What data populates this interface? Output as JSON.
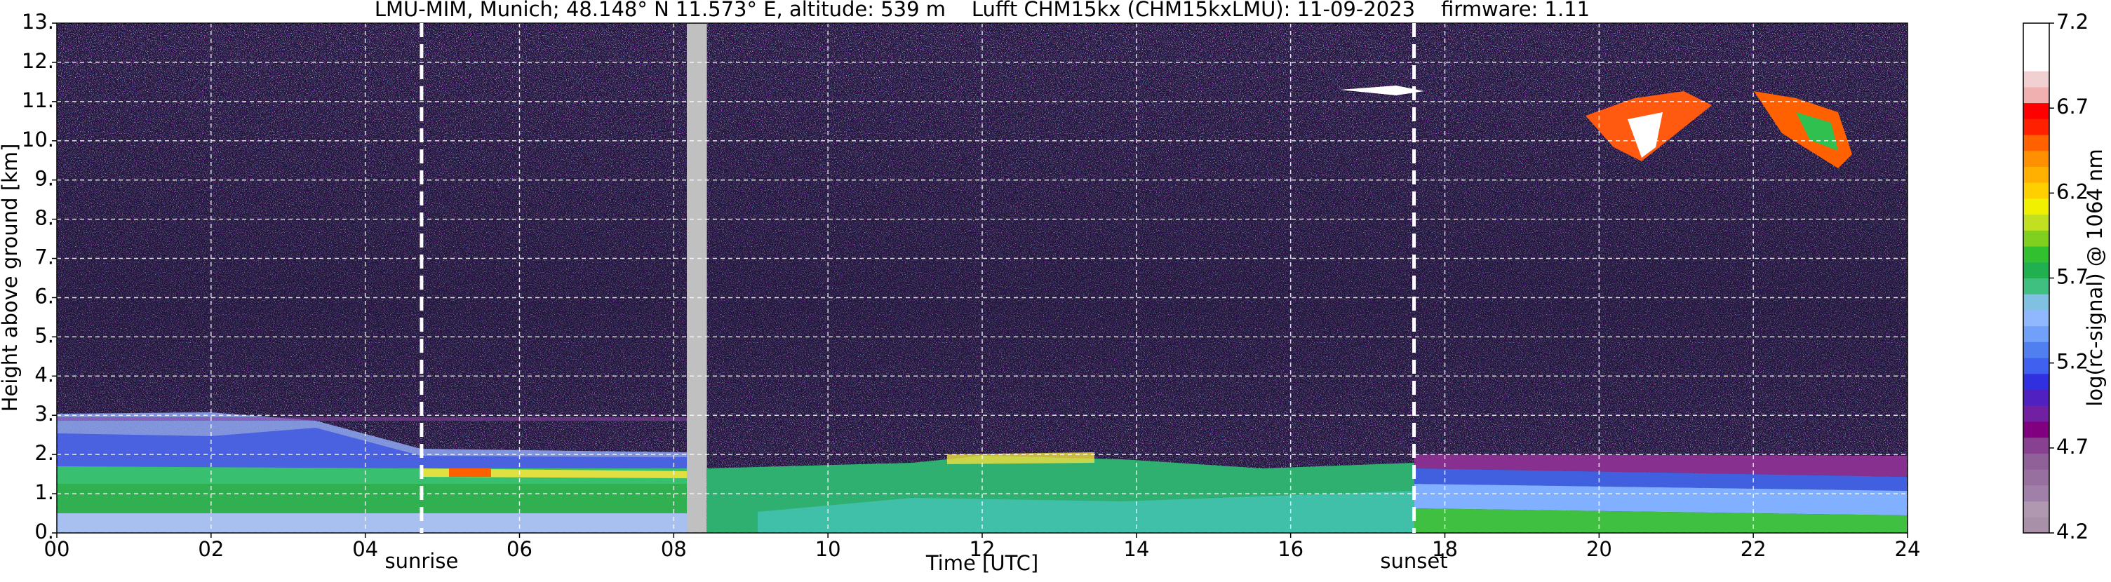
{
  "chart_data": {
    "type": "heatmap",
    "title": "LMU-MIM, Munich; 48.148° N 11.573° E, altitude: 539 m    Lufft CHM15kx (CHM15kxLMU): 11-09-2023    firmware: 1.11",
    "xlabel": "Time [UTC]",
    "ylabel": "Height above ground [km]",
    "xlim": [
      0,
      24
    ],
    "xticks": [
      {
        "value": 0,
        "label": "00"
      },
      {
        "value": 2,
        "label": "02"
      },
      {
        "value": 4,
        "label": "04"
      },
      {
        "value": 6,
        "label": "06"
      },
      {
        "value": 8,
        "label": "08"
      },
      10,
      12,
      14,
      16,
      18,
      20,
      22,
      24
    ],
    "ylim": [
      0,
      13
    ],
    "yticks": [
      {
        "value": 0,
        "label": "0."
      },
      {
        "value": 1,
        "label": "1."
      },
      {
        "value": 2,
        "label": "2."
      },
      {
        "value": 3,
        "label": "3."
      },
      {
        "value": 4,
        "label": "4."
      },
      {
        "value": 5,
        "label": "5."
      },
      {
        "value": 6,
        "label": "6."
      },
      {
        "value": 7,
        "label": "7."
      },
      {
        "value": 8,
        "label": "8."
      },
      {
        "value": 9,
        "label": "9."
      },
      {
        "value": 10,
        "label": "10."
      },
      {
        "value": 11,
        "label": "11."
      },
      {
        "value": 12,
        "label": "12."
      },
      {
        "value": 13,
        "label": "13."
      }
    ],
    "grid": true,
    "annotations": [
      {
        "label": "sunrise",
        "x": 4.73
      },
      {
        "label": "sunset",
        "x": 17.6
      }
    ],
    "data_gap": {
      "xlim": [
        8.17,
        8.43
      ],
      "color": "#c0c0c0"
    },
    "colorbar": {
      "label": "log(rc-signal) @ 1064 nm",
      "lim": [
        4.2,
        7.2
      ],
      "ticks": [
        4.2,
        4.7,
        5.2,
        5.7,
        6.2,
        6.7,
        7.2
      ],
      "colors": [
        "#a890a8",
        "#b098b0",
        "#a080a8",
        "#9870a0",
        "#906098",
        "#884090",
        "#800080",
        "#7020a0",
        "#5020c0",
        "#3030e0",
        "#4060f0",
        "#5080f0",
        "#70a0f8",
        "#90b8ff",
        "#80c0e0",
        "#40c080",
        "#20b050",
        "#30c030",
        "#80d020",
        "#c0e020",
        "#f0f000",
        "#ffd000",
        "#ffb000",
        "#ff9000",
        "#ff6000",
        "#ff2000",
        "#ff0000",
        "#f0b0b0",
        "#f0d0d0",
        "#ffffff",
        "#ffffff",
        "#ffffff"
      ]
    }
  }
}
